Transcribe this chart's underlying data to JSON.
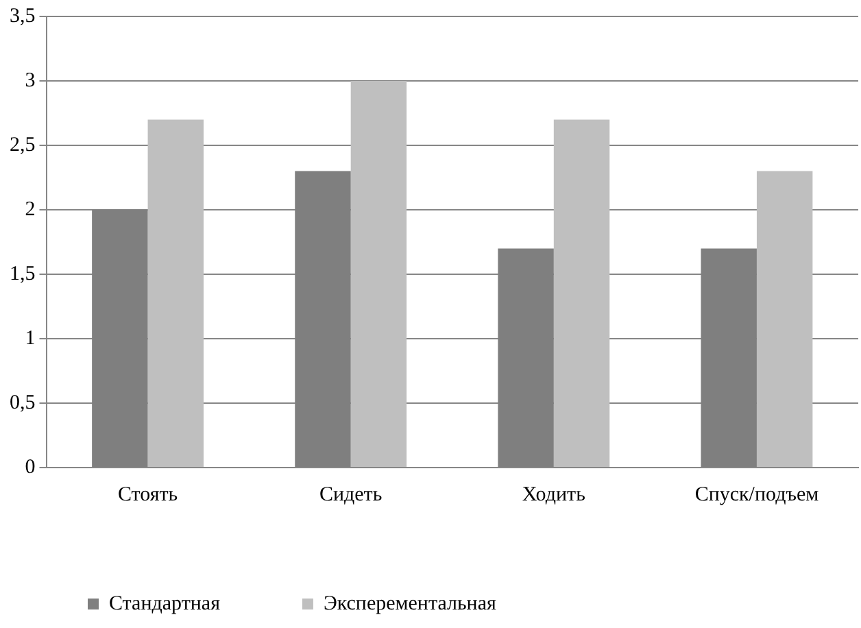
{
  "chart_data": {
    "type": "bar",
    "categories": [
      "Стоять",
      "Сидеть",
      "Ходить",
      "Спуск/подъем"
    ],
    "series": [
      {
        "name": "Стандартная",
        "color": "#7f7f7f",
        "values": [
          2.0,
          2.3,
          1.7,
          1.7
        ]
      },
      {
        "name": "Эксперементальная",
        "color": "#bfbfbf",
        "values": [
          2.7,
          3.0,
          2.7,
          2.3
        ]
      }
    ],
    "ylim": [
      0,
      3.5
    ],
    "yticks": [
      {
        "value": 0,
        "label": "0"
      },
      {
        "value": 0.5,
        "label": "0,5"
      },
      {
        "value": 1,
        "label": "1"
      },
      {
        "value": 1.5,
        "label": "1,5"
      },
      {
        "value": 2,
        "label": "2"
      },
      {
        "value": 2.5,
        "label": "2,5"
      },
      {
        "value": 3,
        "label": "3"
      },
      {
        "value": 3.5,
        "label": "3,5"
      }
    ],
    "grid": "y",
    "legend": "bottom"
  }
}
